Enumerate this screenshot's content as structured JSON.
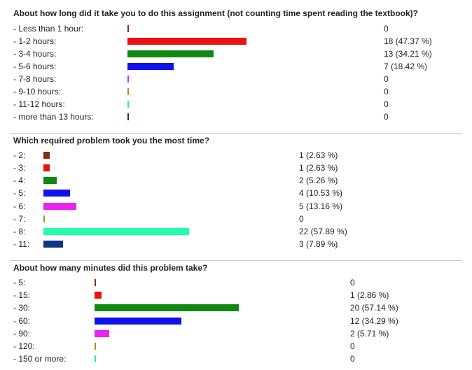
{
  "questions": [
    {
      "title": "About how long did it take you to do this assignment (not counting time spent reading the textbook)?",
      "rows": [
        {
          "label": "- Less than 1 hour:",
          "count": 0,
          "text": "0",
          "color": "#8b2b0b"
        },
        {
          "label": "- 1-2 hours:",
          "count": 18,
          "text": "18 (47.37 %)",
          "color": "#ee1111"
        },
        {
          "label": "- 3-4 hours:",
          "count": 13,
          "text": "13 (34.21 %)",
          "color": "#118811"
        },
        {
          "label": "- 5-6 hours:",
          "count": 7,
          "text": "7 (18.42 %)",
          "color": "#1111ee"
        },
        {
          "label": "- 7-8 hours:",
          "count": 0,
          "text": "0",
          "color": "#ee22ee"
        },
        {
          "label": "- 9-10 hours:",
          "count": 0,
          "text": "0",
          "color": "#999922"
        },
        {
          "label": "- 11-12 hours:",
          "count": 0,
          "text": "0",
          "color": "#22eebb"
        },
        {
          "label": "- more than 13 hours:",
          "count": 0,
          "text": "0",
          "color": "#113388"
        }
      ]
    },
    {
      "title": "Which required problem took you the most time?",
      "rows": [
        {
          "label": "- 2:",
          "count": 1,
          "text": "1 (2.63 %)",
          "color": "#8b2b0b"
        },
        {
          "label": "- 3:",
          "count": 1,
          "text": "1 (2.63 %)",
          "color": "#ee1111"
        },
        {
          "label": "- 4:",
          "count": 2,
          "text": "2 (5.26 %)",
          "color": "#118811"
        },
        {
          "label": "- 5:",
          "count": 4,
          "text": "4 (10.53 %)",
          "color": "#1111ee"
        },
        {
          "label": "- 6:",
          "count": 5,
          "text": "5 (13.16 %)",
          "color": "#ee22ee"
        },
        {
          "label": "- 7:",
          "count": 0,
          "text": "0",
          "color": "#999922"
        },
        {
          "label": "- 8:",
          "count": 22,
          "text": "22 (57.89 %)",
          "color": "#22ffaa"
        },
        {
          "label": "- 11:",
          "count": 3,
          "text": "3 (7.89 %)",
          "color": "#113388"
        }
      ]
    },
    {
      "title": "About how many minutes did this problem take?",
      "rows": [
        {
          "label": "- 5:",
          "count": 0,
          "text": "0",
          "color": "#8b2b0b"
        },
        {
          "label": "- 15:",
          "count": 1,
          "text": "1 (2.86 %)",
          "color": "#ee1111"
        },
        {
          "label": "- 30:",
          "count": 20,
          "text": "20 (57.14 %)",
          "color": "#118811"
        },
        {
          "label": "- 60:",
          "count": 12,
          "text": "12 (34.29 %)",
          "color": "#1111ee"
        },
        {
          "label": "- 90:",
          "count": 2,
          "text": "2 (5.71 %)",
          "color": "#ee22ee"
        },
        {
          "label": "- 120:",
          "count": 0,
          "text": "0",
          "color": "#999922"
        },
        {
          "label": "- 150 or more:",
          "count": 0,
          "text": "0",
          "color": "#22eebb"
        }
      ]
    }
  ],
  "chart_data": [
    {
      "type": "bar",
      "title": "About how long did it take you to do this assignment (not counting time spent reading the textbook)?",
      "categories": [
        "Less than 1 hour",
        "1-2 hours",
        "3-4 hours",
        "5-6 hours",
        "7-8 hours",
        "9-10 hours",
        "11-12 hours",
        "more than 13 hours"
      ],
      "values": [
        0,
        18,
        13,
        7,
        0,
        0,
        0,
        0
      ],
      "percentages": [
        null,
        47.37,
        34.21,
        18.42,
        null,
        null,
        null,
        null
      ]
    },
    {
      "type": "bar",
      "title": "Which required problem took you the most time?",
      "categories": [
        "2",
        "3",
        "4",
        "5",
        "6",
        "7",
        "8",
        "11"
      ],
      "values": [
        1,
        1,
        2,
        4,
        5,
        0,
        22,
        3
      ],
      "percentages": [
        2.63,
        2.63,
        5.26,
        10.53,
        13.16,
        null,
        57.89,
        7.89
      ]
    },
    {
      "type": "bar",
      "title": "About how many minutes did this problem take?",
      "categories": [
        "5",
        "15",
        "30",
        "60",
        "90",
        "120",
        "150 or more"
      ],
      "values": [
        0,
        1,
        20,
        12,
        2,
        0,
        0
      ],
      "percentages": [
        null,
        2.86,
        57.14,
        34.29,
        5.71,
        null,
        null
      ]
    }
  ]
}
